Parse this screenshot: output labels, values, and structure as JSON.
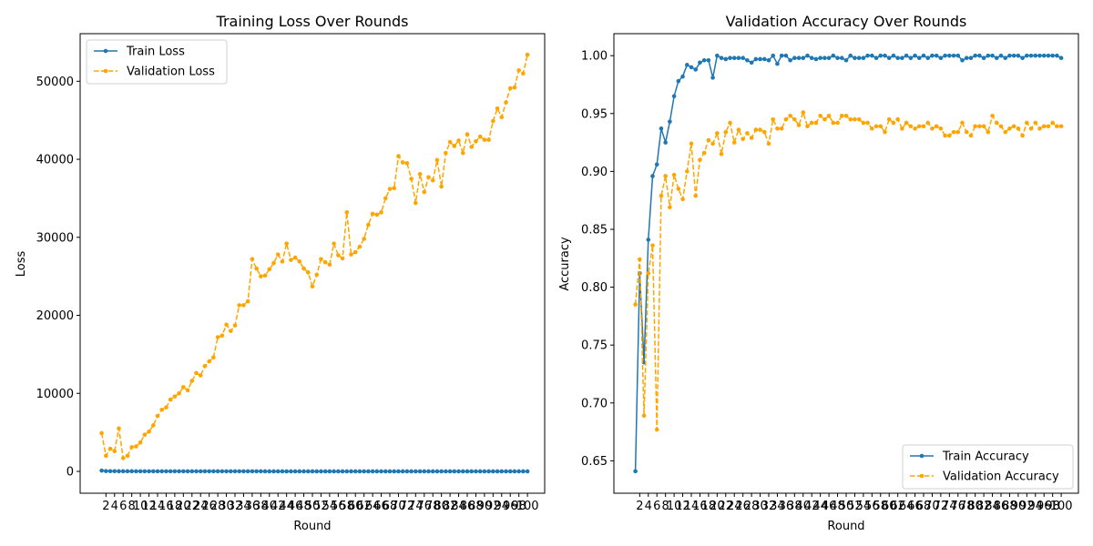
{
  "chart_data": [
    {
      "type": "line",
      "title": "Training Loss Over Rounds",
      "xlabel": "Round",
      "ylabel": "Loss",
      "x": [
        1,
        2,
        3,
        4,
        5,
        6,
        7,
        8,
        9,
        10,
        11,
        12,
        13,
        14,
        15,
        16,
        17,
        18,
        19,
        20,
        21,
        22,
        23,
        24,
        25,
        26,
        27,
        28,
        29,
        30,
        31,
        32,
        33,
        34,
        35,
        36,
        37,
        38,
        39,
        40,
        41,
        42,
        43,
        44,
        45,
        46,
        47,
        48,
        49,
        50,
        51,
        52,
        53,
        54,
        55,
        56,
        57,
        58,
        59,
        60,
        61,
        62,
        63,
        64,
        65,
        66,
        67,
        68,
        69,
        70,
        71,
        72,
        73,
        74,
        75,
        76,
        77,
        78,
        79,
        80,
        81,
        82,
        83,
        84,
        85,
        86,
        87,
        88,
        89,
        90,
        91,
        92,
        93,
        94,
        95,
        96,
        97,
        98,
        99,
        100
      ],
      "xticks": [
        2,
        4,
        6,
        8,
        10,
        12,
        14,
        16,
        18,
        20,
        22,
        24,
        26,
        28,
        30,
        32,
        34,
        36,
        38,
        40,
        42,
        44,
        46,
        48,
        50,
        52,
        54,
        56,
        58,
        60,
        62,
        64,
        66,
        68,
        70,
        72,
        74,
        76,
        78,
        80,
        82,
        84,
        86,
        88,
        90,
        92,
        94,
        96,
        98,
        100
      ],
      "yticks": [
        0,
        10000,
        20000,
        30000,
        40000,
        50000
      ],
      "xlim": [
        -4,
        104
      ],
      "ylim": [
        -2800,
        56100
      ],
      "legend_loc": "upper-left",
      "series": [
        {
          "name": "Train Loss",
          "color": "#1f77b4",
          "style": "solid",
          "values": [
            100,
            40,
            30,
            25,
            20,
            18,
            16,
            15,
            14,
            13,
            12,
            12,
            11,
            11,
            10,
            10,
            10,
            9,
            9,
            9,
            9,
            9,
            8,
            8,
            8,
            8,
            8,
            8,
            8,
            7,
            7,
            7,
            7,
            7,
            7,
            7,
            7,
            7,
            6,
            6,
            6,
            6,
            6,
            6,
            6,
            6,
            6,
            6,
            6,
            6,
            6,
            6,
            5,
            5,
            5,
            5,
            5,
            5,
            5,
            5,
            5,
            5,
            5,
            5,
            5,
            5,
            5,
            5,
            5,
            5,
            5,
            5,
            5,
            5,
            5,
            5,
            5,
            5,
            5,
            5,
            5,
            5,
            5,
            5,
            5,
            5,
            5,
            5,
            5,
            5,
            5,
            5,
            5,
            5,
            5,
            5,
            5,
            5,
            5,
            5
          ]
        },
        {
          "name": "Validation Loss",
          "color": "#ffa500",
          "style": "dashed",
          "values": [
            4900,
            2000,
            2900,
            2600,
            5500,
            1700,
            2000,
            3100,
            3200,
            3700,
            4700,
            5100,
            5900,
            7100,
            7900,
            8200,
            9200,
            9600,
            10000,
            10800,
            10400,
            11600,
            12600,
            12300,
            13500,
            14100,
            14600,
            17200,
            17400,
            18800,
            18000,
            18700,
            21300,
            21300,
            21800,
            27200,
            26000,
            25000,
            25100,
            25900,
            26700,
            27800,
            26900,
            29200,
            27100,
            27400,
            26900,
            26000,
            25500,
            23700,
            25200,
            27200,
            26800,
            26500,
            29200,
            27700,
            27300,
            33200,
            27800,
            28100,
            28800,
            29800,
            31600,
            33000,
            32900,
            33200,
            35000,
            36200,
            36300,
            40400,
            39600,
            39500,
            37500,
            34400,
            38100,
            35800,
            37700,
            37300,
            39900,
            36500,
            40800,
            42200,
            41700,
            42400,
            40800,
            43200,
            41600,
            42300,
            42900,
            42500,
            42500,
            44900,
            46500,
            45400,
            47300,
            49100,
            49200,
            51400,
            51000,
            53400
          ]
        }
      ]
    },
    {
      "type": "line",
      "title": "Validation Accuracy Over Rounds",
      "xlabel": "Round",
      "ylabel": "Accuracy",
      "x": [
        1,
        2,
        3,
        4,
        5,
        6,
        7,
        8,
        9,
        10,
        11,
        12,
        13,
        14,
        15,
        16,
        17,
        18,
        19,
        20,
        21,
        22,
        23,
        24,
        25,
        26,
        27,
        28,
        29,
        30,
        31,
        32,
        33,
        34,
        35,
        36,
        37,
        38,
        39,
        40,
        41,
        42,
        43,
        44,
        45,
        46,
        47,
        48,
        49,
        50,
        51,
        52,
        53,
        54,
        55,
        56,
        57,
        58,
        59,
        60,
        61,
        62,
        63,
        64,
        65,
        66,
        67,
        68,
        69,
        70,
        71,
        72,
        73,
        74,
        75,
        76,
        77,
        78,
        79,
        80,
        81,
        82,
        83,
        84,
        85,
        86,
        87,
        88,
        89,
        90,
        91,
        92,
        93,
        94,
        95,
        96,
        97,
        98,
        99,
        100
      ],
      "xticks": [
        2,
        4,
        6,
        8,
        10,
        12,
        14,
        16,
        18,
        20,
        22,
        24,
        26,
        28,
        30,
        32,
        34,
        36,
        38,
        40,
        42,
        44,
        46,
        48,
        50,
        52,
        54,
        56,
        58,
        60,
        62,
        64,
        66,
        68,
        70,
        72,
        74,
        76,
        78,
        80,
        82,
        84,
        86,
        88,
        90,
        92,
        94,
        96,
        98,
        100
      ],
      "yticks": [
        0.65,
        0.7,
        0.75,
        0.8,
        0.85,
        0.9,
        0.95,
        1.0
      ],
      "xlim": [
        -4,
        104
      ],
      "ylim": [
        0.622,
        1.019
      ],
      "legend_loc": "lower-right",
      "series": [
        {
          "name": "Train Accuracy",
          "color": "#1f77b4",
          "style": "solid",
          "values": [
            0.641,
            0.812,
            0.735,
            0.841,
            0.896,
            0.906,
            0.937,
            0.925,
            0.943,
            0.965,
            0.978,
            0.982,
            0.992,
            0.99,
            0.988,
            0.994,
            0.996,
            0.996,
            0.981,
            1.0,
            0.998,
            0.997,
            0.998,
            0.998,
            0.998,
            0.998,
            0.996,
            0.994,
            0.997,
            0.997,
            0.997,
            0.996,
            1.0,
            0.993,
            1.0,
            1.0,
            0.996,
            0.998,
            0.998,
            0.998,
            1.0,
            0.998,
            0.997,
            0.998,
            0.998,
            0.998,
            1.0,
            0.998,
            0.998,
            0.996,
            1.0,
            0.998,
            0.998,
            0.998,
            1.0,
            1.0,
            0.998,
            1.0,
            1.0,
            0.998,
            1.0,
            0.998,
            0.998,
            1.0,
            0.998,
            1.0,
            0.998,
            1.0,
            0.998,
            1.0,
            1.0,
            0.998,
            1.0,
            1.0,
            1.0,
            1.0,
            0.996,
            0.998,
            0.998,
            1.0,
            1.0,
            0.998,
            1.0,
            1.0,
            0.998,
            1.0,
            0.998,
            1.0,
            1.0,
            1.0,
            0.998,
            1.0,
            1.0,
            1.0,
            1.0,
            1.0,
            1.0,
            1.0,
            1.0,
            0.998
          ]
        },
        {
          "name": "Validation Accuracy",
          "color": "#ffa500",
          "style": "dashed",
          "values": [
            0.785,
            0.824,
            0.689,
            0.812,
            0.836,
            0.677,
            0.879,
            0.896,
            0.869,
            0.897,
            0.885,
            0.876,
            0.9,
            0.924,
            0.879,
            0.91,
            0.916,
            0.927,
            0.924,
            0.933,
            0.915,
            0.934,
            0.942,
            0.925,
            0.936,
            0.928,
            0.933,
            0.929,
            0.936,
            0.936,
            0.934,
            0.924,
            0.945,
            0.937,
            0.937,
            0.945,
            0.948,
            0.945,
            0.94,
            0.951,
            0.939,
            0.942,
            0.942,
            0.948,
            0.945,
            0.948,
            0.942,
            0.942,
            0.948,
            0.948,
            0.945,
            0.945,
            0.945,
            0.942,
            0.942,
            0.937,
            0.939,
            0.939,
            0.934,
            0.945,
            0.942,
            0.945,
            0.937,
            0.942,
            0.939,
            0.937,
            0.939,
            0.939,
            0.942,
            0.937,
            0.939,
            0.937,
            0.931,
            0.931,
            0.934,
            0.934,
            0.942,
            0.934,
            0.931,
            0.939,
            0.939,
            0.939,
            0.934,
            0.948,
            0.942,
            0.939,
            0.934,
            0.937,
            0.939,
            0.937,
            0.931,
            0.942,
            0.937,
            0.942,
            0.937,
            0.939,
            0.939,
            0.942,
            0.939,
            0.939
          ]
        }
      ]
    }
  ]
}
